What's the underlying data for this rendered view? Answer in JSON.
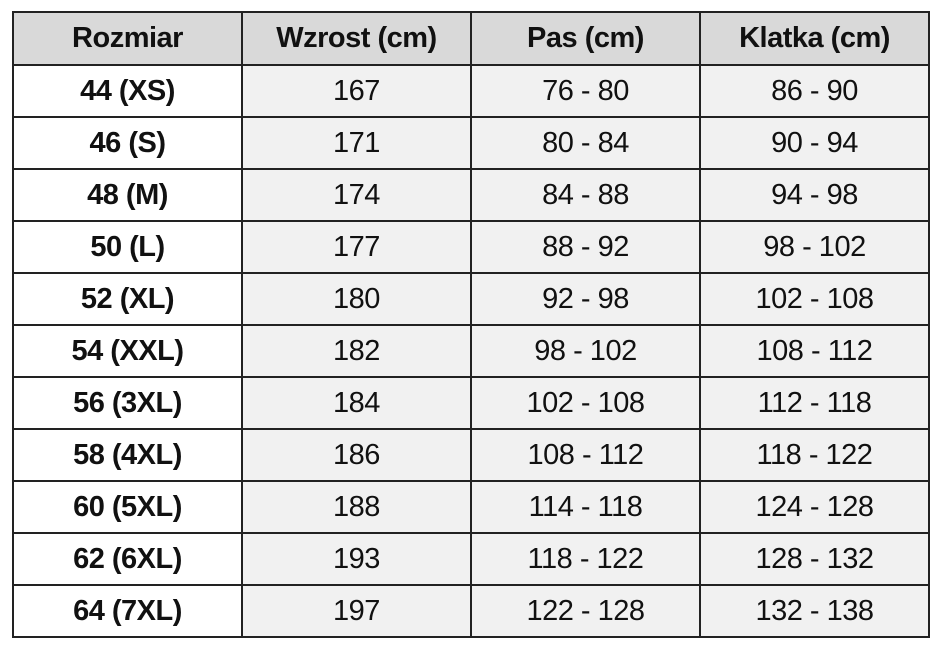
{
  "table": {
    "header": [
      "Rozmiar",
      "Wzrost (cm)",
      "Pas (cm)",
      "Klatka (cm)"
    ],
    "rows": [
      [
        "44 (XS)",
        "167",
        "76 - 80",
        "86 - 90"
      ],
      [
        "46 (S)",
        "171",
        "80 - 84",
        "90 - 94"
      ],
      [
        "48 (M)",
        "174",
        "84 - 88",
        "94 - 98"
      ],
      [
        "50 (L)",
        "177",
        "88 - 92",
        "98 - 102"
      ],
      [
        "52 (XL)",
        "180",
        "92 - 98",
        "102 - 108"
      ],
      [
        "54 (XXL)",
        "182",
        "98 - 102",
        "108 - 112"
      ],
      [
        "56 (3XL)",
        "184",
        "102 - 108",
        "112 - 118"
      ],
      [
        "58 (4XL)",
        "186",
        "108 - 112",
        "118 - 122"
      ],
      [
        "60 (5XL)",
        "188",
        "114 - 118",
        "124 - 128"
      ],
      [
        "62 (6XL)",
        "193",
        "118 - 122",
        "128 - 132"
      ],
      [
        "64 (7XL)",
        "197",
        "122 - 128",
        "132 - 138"
      ]
    ]
  }
}
